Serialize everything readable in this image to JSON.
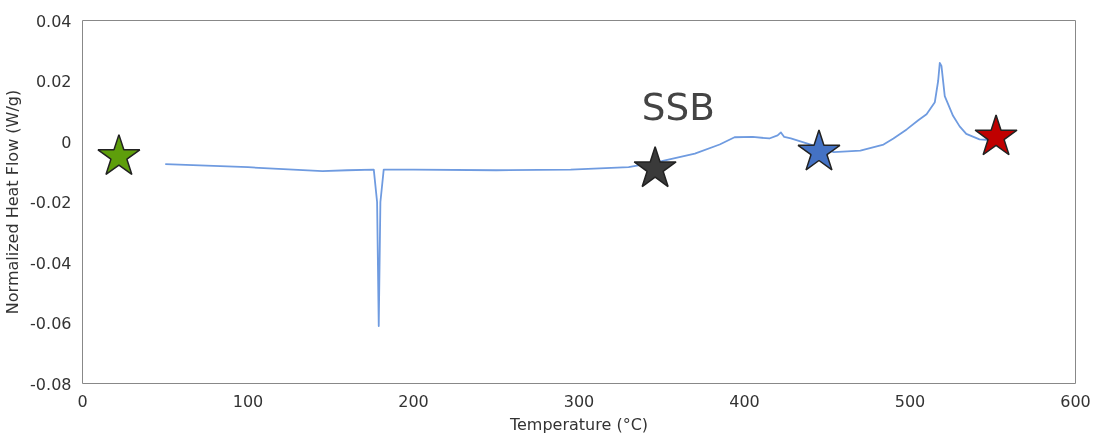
{
  "chart_data": {
    "type": "line",
    "title": "SSB",
    "xlabel": "Temperature (°C)",
    "ylabel": "Normalized Heat Flow (W/g)",
    "xlim": [
      0,
      600
    ],
    "xticks": [
      0,
      100,
      200,
      300,
      400,
      500,
      600
    ],
    "ylim": [
      -0.08,
      0.04
    ],
    "yticks": [
      -0.08,
      -0.06,
      -0.04,
      -0.02,
      0,
      0.02,
      0.04
    ],
    "grid": false,
    "marker": "none",
    "line_style": "solid",
    "series": [
      {
        "color": "#6f9be0",
        "x": [
          50,
          100,
          145,
          160,
          176,
          178,
          179,
          180,
          182,
          200,
          250,
          295,
          330,
          350,
          370,
          385,
          394,
          405,
          415,
          420,
          422,
          424,
          428,
          440,
          454,
          470,
          484,
          490,
          498,
          505,
          510,
          515,
          517,
          518,
          519,
          521,
          526,
          530,
          534,
          542,
          548
        ],
        "values": [
          -0.0075,
          -0.0085,
          -0.0098,
          -0.0095,
          -0.0093,
          -0.02,
          -0.061,
          -0.02,
          -0.0093,
          -0.0093,
          -0.0095,
          -0.0093,
          -0.0085,
          -0.0065,
          -0.004,
          -0.001,
          0.0014,
          0.0015,
          0.001,
          0.002,
          0.003,
          0.0015,
          0.001,
          -0.001,
          -0.0035,
          -0.003,
          -0.001,
          0.001,
          0.004,
          0.007,
          0.009,
          0.013,
          0.02,
          0.026,
          0.025,
          0.015,
          0.0085,
          0.005,
          0.0025,
          0.0007,
          0.0005
        ]
      },
      {
        "type": "scatter",
        "marker": "star",
        "x": [
          22,
          346,
          445,
          552
        ],
        "values": [
          -0.005,
          -0.009,
          -0.0035,
          0.0015
        ],
        "colors": [
          "#5e9e0b",
          "#3a3a3a",
          "#4472c4",
          "#c00000"
        ]
      }
    ]
  }
}
